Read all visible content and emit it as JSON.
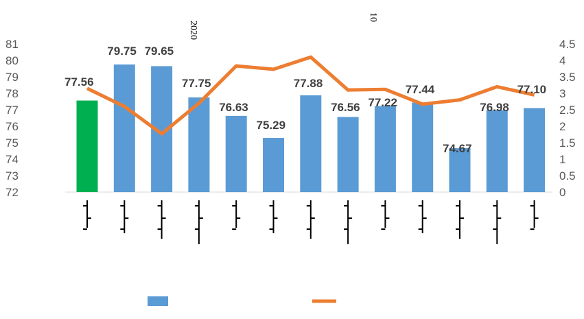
{
  "chart_data": {
    "type": "bar+line",
    "title_fragments": [
      "2020",
      "10"
    ],
    "left_axis": {
      "ylim": [
        72,
        81
      ],
      "ticks": [
        "72",
        "73",
        "74",
        "75",
        "76",
        "77",
        "78",
        "79",
        "80",
        "81"
      ]
    },
    "right_axis": {
      "ylim": [
        0,
        4.5
      ],
      "ticks": [
        "0",
        "0.5",
        "1",
        "1.5",
        "2",
        "2.5",
        "3",
        "3.5",
        "4",
        "4.5"
      ]
    },
    "series": [
      {
        "name": "bar",
        "type": "bar",
        "axis": "left",
        "values": [
          77.56,
          79.75,
          79.65,
          77.75,
          76.63,
          75.29,
          77.88,
          76.56,
          77.22,
          77.44,
          74.67,
          76.98,
          77.1
        ],
        "labels": [
          "77.56",
          "79.75",
          "79.65",
          "77.75",
          "76.63",
          "75.29",
          "77.88",
          "76.56",
          "77.22",
          "77.44",
          "74.67",
          "76.98",
          "77.10"
        ],
        "colors": [
          "#00b050",
          "#5b9bd5",
          "#5b9bd5",
          "#5b9bd5",
          "#5b9bd5",
          "#5b9bd5",
          "#5b9bd5",
          "#5b9bd5",
          "#5b9bd5",
          "#5b9bd5",
          "#5b9bd5",
          "#5b9bd5",
          "#5b9bd5"
        ]
      },
      {
        "name": "line",
        "type": "line",
        "axis": "right",
        "color": "#ed7d31",
        "values": [
          3.15,
          2.6,
          1.77,
          2.7,
          3.83,
          3.73,
          4.1,
          3.1,
          3.12,
          2.67,
          2.8,
          3.2,
          2.95
        ]
      }
    ],
    "legend_placement": "bottom",
    "grid": false
  }
}
